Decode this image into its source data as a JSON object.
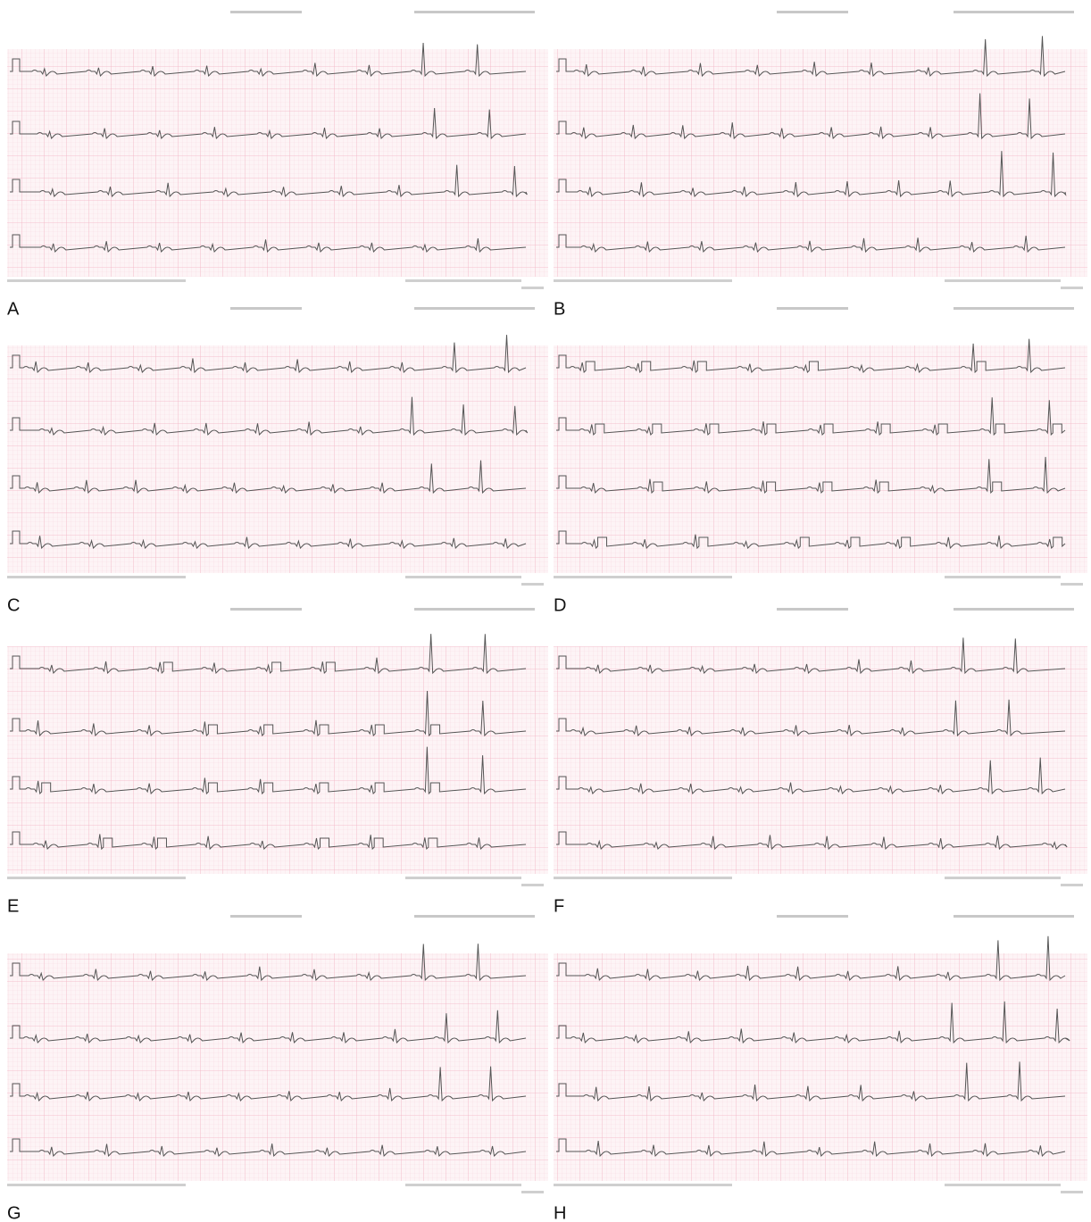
{
  "panels": [
    {
      "label": "A"
    },
    {
      "label": "B"
    },
    {
      "label": "C"
    },
    {
      "label": "D"
    },
    {
      "label": "E"
    },
    {
      "label": "F"
    },
    {
      "label": "G"
    },
    {
      "label": "H"
    }
  ]
}
